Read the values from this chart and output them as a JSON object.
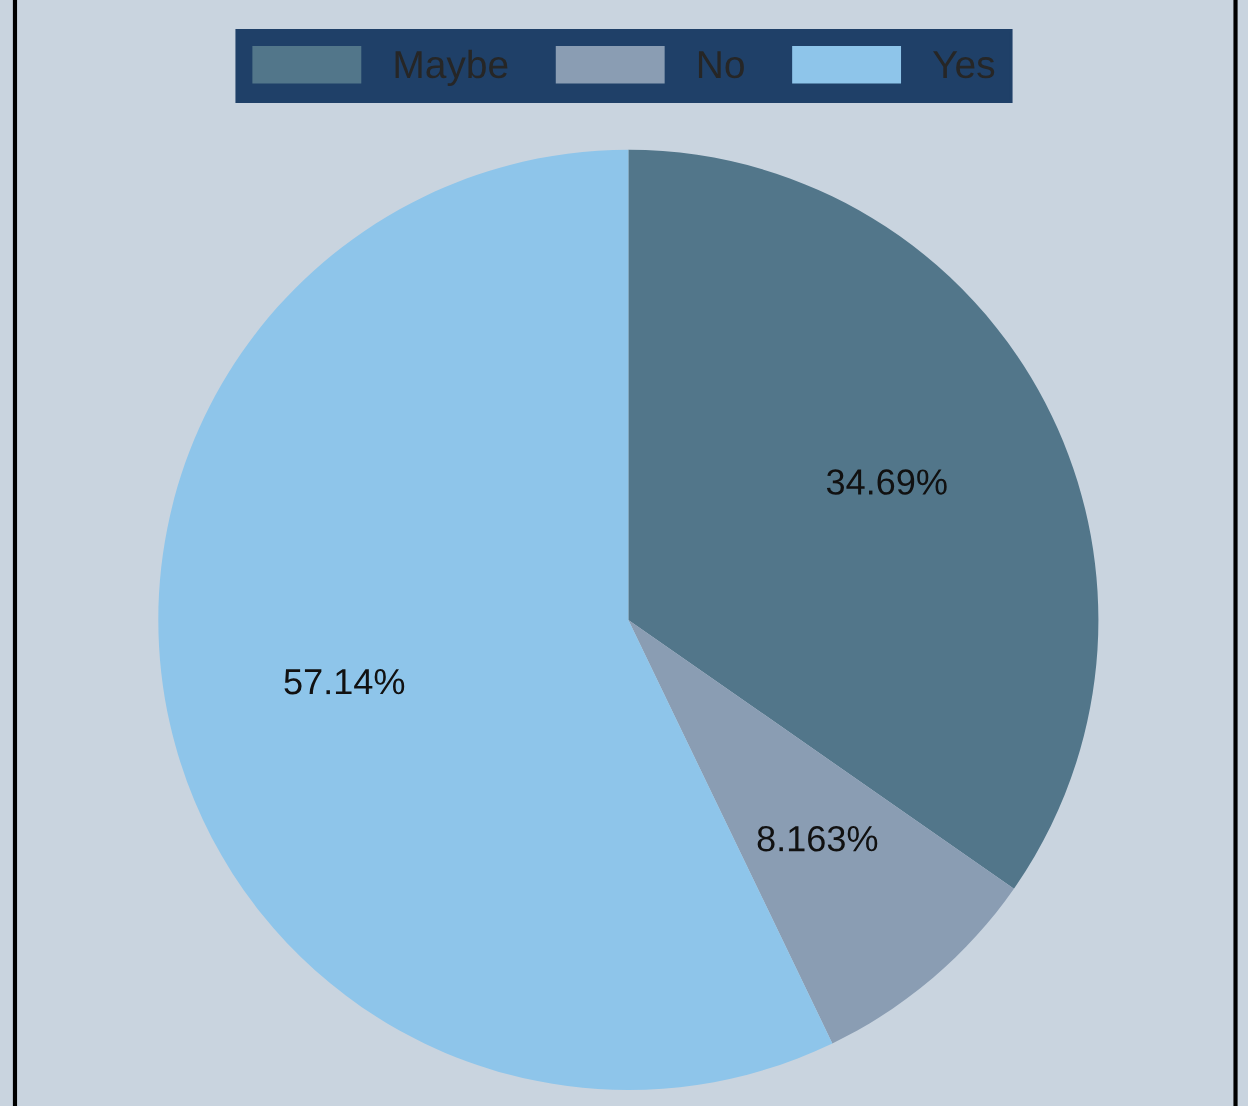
{
  "chart_data": {
    "type": "pie",
    "categories": [
      "Maybe",
      "No",
      "Yes"
    ],
    "values": [
      34.69,
      8.163,
      57.14
    ],
    "colors": [
      "#52768a",
      "#8a9db3",
      "#8ec5ea"
    ],
    "value_labels": [
      "34.69%",
      "8.163%",
      "57.14%"
    ],
    "legend": "top"
  }
}
